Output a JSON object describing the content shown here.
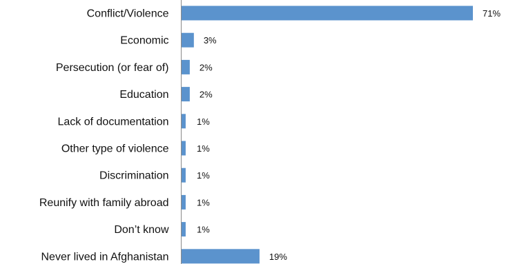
{
  "chart_data": {
    "type": "bar",
    "orientation": "horizontal",
    "categories": [
      "Conflict/Violence",
      "Economic",
      "Persecution (or fear of)",
      "Education",
      "Lack of documentation",
      "Other type of violence",
      "Discrimination",
      "Reunify with family abroad",
      "Don’t know",
      "Never lived in Afghanistan"
    ],
    "values": [
      71,
      3,
      2,
      2,
      1,
      1,
      1,
      1,
      1,
      19
    ],
    "data_labels": [
      "71%",
      "3%",
      "2%",
      "2%",
      "1%",
      "1%",
      "1%",
      "1%",
      "1%",
      "19%"
    ],
    "xlim": [
      0,
      71
    ],
    "title": "",
    "xlabel": "",
    "ylabel": "",
    "colors": {
      "bar": "#5b93cd",
      "axis": "#8a8a8a"
    }
  }
}
